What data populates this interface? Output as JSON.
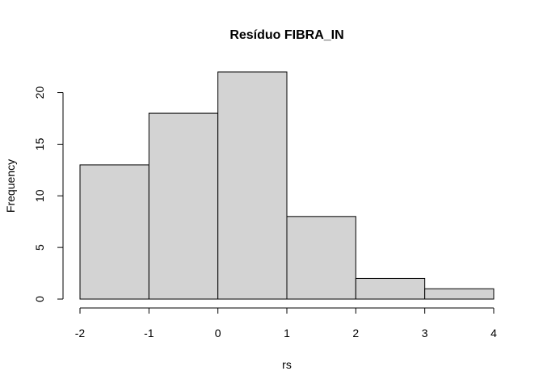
{
  "chart_data": {
    "type": "bar",
    "subtype": "histogram",
    "title": "Resíduo  FIBRA_IN",
    "xlabel": "rs",
    "ylabel": "Frequency",
    "bins": [
      {
        "start": -2,
        "end": -1,
        "count": 13
      },
      {
        "start": -1,
        "end": 0,
        "count": 18
      },
      {
        "start": 0,
        "end": 1,
        "count": 22
      },
      {
        "start": 1,
        "end": 2,
        "count": 8
      },
      {
        "start": 2,
        "end": 3,
        "count": 2
      },
      {
        "start": 3,
        "end": 4,
        "count": 1
      }
    ],
    "xlim": [
      -2,
      4
    ],
    "ylim": [
      0,
      22
    ],
    "xticks": [
      "-2",
      "-1",
      "0",
      "1",
      "2",
      "3",
      "4"
    ],
    "yticks": [
      "0",
      "5",
      "10",
      "15",
      "20"
    ],
    "bar_color": "#d3d3d3",
    "grid": false,
    "legend": "none"
  }
}
